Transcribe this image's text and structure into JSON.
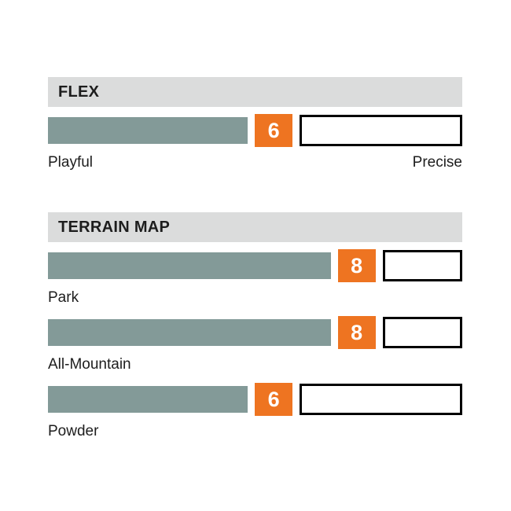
{
  "colors": {
    "page_bg": "#ffffff",
    "header_bg": "#dbdcdc",
    "text": "#1d1d1d",
    "bar_fill_sage": "#839a98",
    "accent_orange": "#ee7421",
    "empty_bar_border": "#000000",
    "badge_text": "#ffffff"
  },
  "flex_section": {
    "title": "FLEX",
    "bar": {
      "value": 6,
      "scale_max": 10,
      "left_label": "Playful",
      "right_label": "Precise"
    }
  },
  "terrain_section": {
    "title": "TERRAIN MAP",
    "bars": [
      {
        "label": "Park",
        "value": 8,
        "scale_max": 10
      },
      {
        "label": "All-Mountain",
        "value": 8,
        "scale_max": 10
      },
      {
        "label": "Powder",
        "value": 6,
        "scale_max": 10
      }
    ]
  },
  "chart_data": [
    {
      "type": "bar",
      "orientation": "horizontal",
      "title": "FLEX",
      "categories": [
        "Flex"
      ],
      "values": [
        6
      ],
      "xlim": [
        0,
        10
      ],
      "axis_endpoint_labels": [
        "Playful",
        "Precise"
      ],
      "data_labels": [
        "6"
      ],
      "legend": "none",
      "grid": false
    },
    {
      "type": "bar",
      "orientation": "horizontal",
      "title": "TERRAIN MAP",
      "categories": [
        "Park",
        "All-Mountain",
        "Powder"
      ],
      "values": [
        8,
        8,
        6
      ],
      "xlim": [
        0,
        10
      ],
      "data_labels": [
        "8",
        "8",
        "6"
      ],
      "legend": "none",
      "grid": false
    }
  ]
}
